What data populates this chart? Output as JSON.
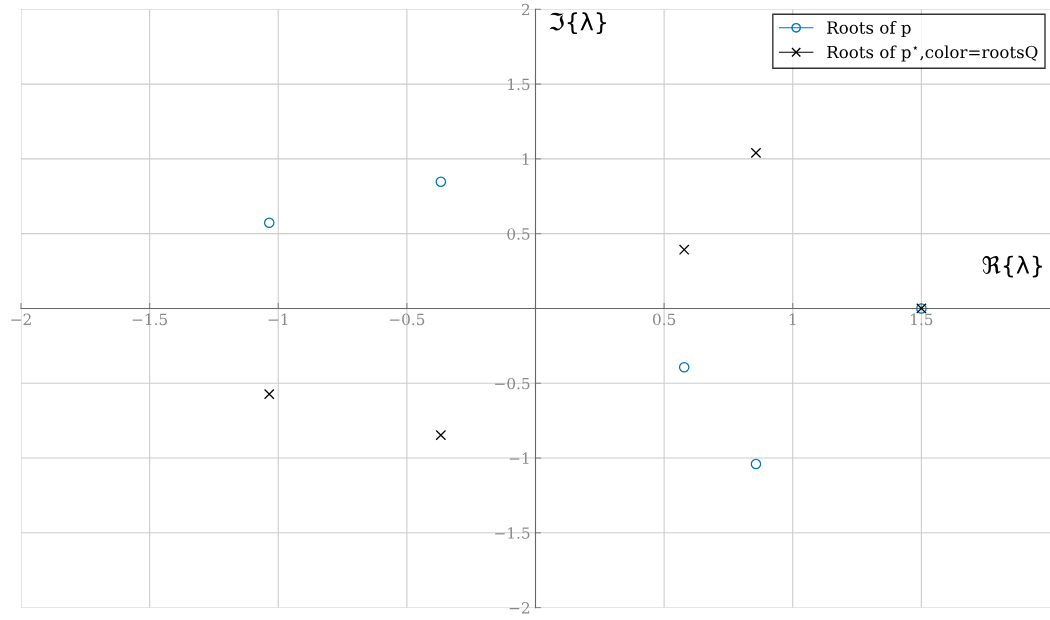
{
  "chart_data": {
    "type": "scatter",
    "xlabel": "ℜ{λ}",
    "ylabel": "ℑ{λ}",
    "series": [
      {
        "name": "Roots of p",
        "color": "#0072bd",
        "marker": "circle",
        "x": [
          -1.035,
          -0.368,
          0.578,
          0.857,
          1.5
        ],
        "values": [
          0.573,
          0.847,
          -0.393,
          -1.04,
          0
        ]
      },
      {
        "name": "Roots of p$^{⋆}$,color=rootsQ",
        "color": "#000000",
        "marker": "cross",
        "x": [
          -1.035,
          -0.368,
          0.578,
          0.857,
          1.5
        ],
        "values": [
          -0.573,
          -0.847,
          0.393,
          1.04,
          0
        ]
      }
    ],
    "xlim": [
      -2,
      2
    ],
    "ylim": [
      -2,
      2
    ],
    "xticks": [
      {
        "value": -2,
        "label": "−2"
      },
      {
        "value": -1.5,
        "label": "−1.5"
      },
      {
        "value": -1,
        "label": "−1"
      },
      {
        "value": -0.5,
        "label": "−0.5"
      },
      0.5,
      1,
      1.5
    ],
    "yticks": [
      {
        "value": -2,
        "label": "−2"
      },
      {
        "value": -1.5,
        "label": "−1.5"
      },
      {
        "value": -1,
        "label": "−1"
      },
      {
        "value": -0.5,
        "label": "−0.5"
      },
      0.5,
      1,
      1.5,
      2
    ],
    "grid": true,
    "legend": "top right"
  }
}
